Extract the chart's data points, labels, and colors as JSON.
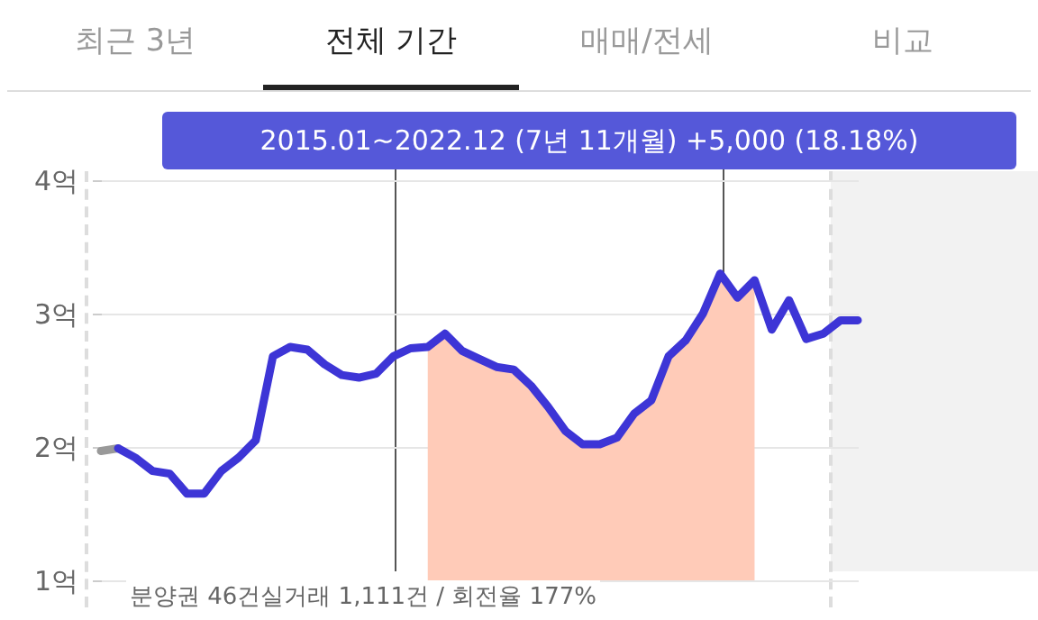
{
  "chart_data": {
    "type": "line",
    "annotations": [
      "최근 3년",
      "전체 기간",
      "매매/전세",
      "비교",
      "2015.01~2022.12 (7년 11개월)  +5,000 (18.18%)",
      "분양권 46건실거래 1,111건 / 회전율 177%"
    ],
    "categories": [
      null,
      null,
      null,
      null,
      null,
      null,
      null,
      null,
      null,
      null,
      null,
      null,
      null,
      null,
      null,
      null,
      null,
      null,
      null,
      null,
      null,
      null,
      null,
      null,
      null,
      null,
      null,
      null,
      null,
      null,
      null,
      null,
      null,
      null,
      null,
      null,
      null,
      null,
      null,
      null,
      null,
      null,
      null,
      null,
      null
    ],
    "series": [
      {
        "type": "area",
        "color": "#ffcbb8",
        "values": [
          null,
          null,
          null,
          null,
          null,
          null,
          null,
          null,
          null,
          null,
          null,
          null,
          null,
          null,
          null,
          null,
          null,
          null,
          null,
          2.75,
          2.85,
          2.72,
          2.66,
          2.6,
          2.58,
          2.46,
          2.3,
          2.12,
          2.02,
          2.02,
          2.07,
          2.25,
          2.35,
          2.68,
          2.8,
          3.0,
          3.3,
          3.12,
          3.25,
          null,
          null,
          null,
          null,
          null,
          null
        ]
      },
      {
        "color": "#999999",
        "values": [
          1.97,
          1.99,
          null,
          null,
          null,
          null,
          null,
          null,
          null,
          null,
          null,
          null,
          null,
          null,
          null,
          null,
          null,
          null,
          null,
          null,
          null,
          null,
          null,
          null,
          null,
          null,
          null,
          null,
          null,
          null,
          null,
          null,
          null,
          null,
          null,
          null,
          null,
          null,
          null,
          null,
          null,
          null,
          null,
          null,
          null
        ]
      },
      {
        "color": "#3d35d6",
        "values": [
          null,
          1.99,
          1.92,
          1.82,
          1.8,
          1.65,
          1.65,
          1.82,
          1.92,
          2.05,
          2.68,
          2.75,
          2.73,
          2.62,
          2.54,
          2.52,
          2.55,
          2.68,
          2.74,
          2.75,
          2.85,
          2.72,
          2.66,
          2.6,
          2.58,
          2.46,
          2.3,
          2.12,
          2.02,
          2.02,
          2.07,
          2.25,
          2.35,
          2.68,
          2.8,
          3.0,
          3.3,
          3.12,
          3.25,
          2.88,
          3.1,
          2.81,
          2.85,
          2.95,
          2.95
        ]
      }
    ],
    "ylim": [
      1,
      4
    ],
    "yticks": [
      {
        "value": 1,
        "label": "1억"
      },
      {
        "value": 2,
        "label": "2억"
      },
      {
        "value": 3,
        "label": "3억"
      },
      {
        "value": 4,
        "label": "4억"
      }
    ],
    "grid": "y",
    "tick_labels": "y",
    "line_style": "solid",
    "marker": "none"
  }
}
